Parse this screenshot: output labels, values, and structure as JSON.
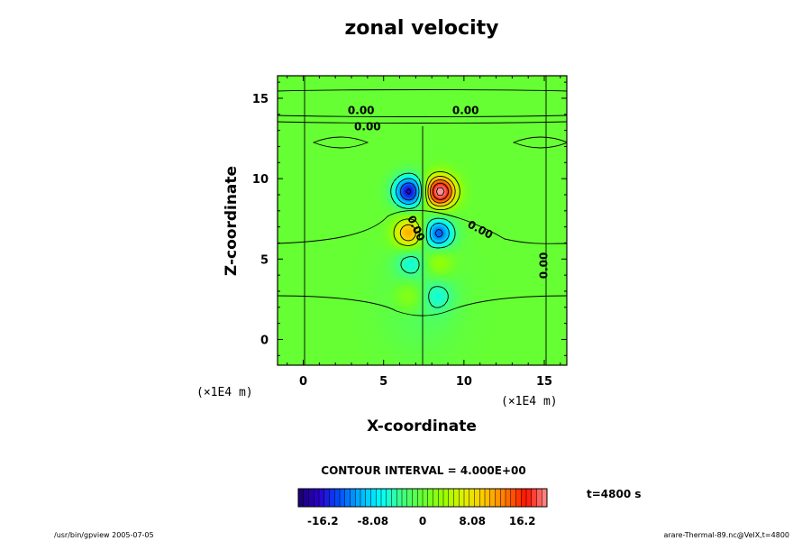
{
  "chart_data": {
    "type": "heatmap",
    "title": "zonal velocity",
    "xlabel": "X-coordinate",
    "ylabel": "Z-coordinate",
    "x_unit": "(×1E4 m)",
    "y_unit": "(×1E4 m)",
    "xlim": [
      -1.6,
      16.4
    ],
    "ylim": [
      -1.6,
      16.4
    ],
    "x_ticks": [
      0,
      5,
      10,
      15
    ],
    "y_ticks": [
      0,
      5,
      10,
      15
    ],
    "x_tick_labels": [
      "0",
      "5",
      "10",
      "15"
    ],
    "y_tick_labels": [
      "0",
      "5",
      "10",
      "15"
    ],
    "field_extrema": [
      {
        "x": 8.5,
        "z": 9.2,
        "value": 22,
        "sign": "positive"
      },
      {
        "x": 6.6,
        "z": 9.2,
        "value": -17,
        "sign": "negative"
      },
      {
        "x": 6.6,
        "z": 6.6,
        "value": 12,
        "sign": "positive"
      },
      {
        "x": 8.4,
        "z": 6.6,
        "value": -13,
        "sign": "negative"
      },
      {
        "x": 6.7,
        "z": 4.8,
        "value": -5,
        "sign": "negative"
      },
      {
        "x": 8.4,
        "z": 4.8,
        "value": 4.5,
        "sign": "positive"
      },
      {
        "x": 6.6,
        "z": 2.7,
        "value": 4,
        "sign": "positive"
      },
      {
        "x": 8.4,
        "z": 2.7,
        "value": -4,
        "sign": "negative"
      }
    ],
    "contour_labels": [
      {
        "text": "0.00",
        "x": 3.6,
        "z": 14.2,
        "angle": 0
      },
      {
        "text": "0.00",
        "x": 10.1,
        "z": 14.2,
        "angle": 0
      },
      {
        "text": "0.00",
        "x": 4.0,
        "z": 13.2,
        "angle": 0
      },
      {
        "text": "0.00",
        "x": 7.0,
        "z": 6.9,
        "angle": 65
      },
      {
        "text": "0.00",
        "x": 11.0,
        "z": 6.8,
        "angle": 28
      },
      {
        "text": "0.00",
        "x": 15.0,
        "z": 4.6,
        "angle": -90
      }
    ],
    "contour_interval_text": "CONTOUR INTERVAL = 4.000E+00",
    "colorbar": {
      "min": -20.2,
      "max": 20.2,
      "tick_values": [
        -16.2,
        -8.08,
        0,
        8.08,
        16.2
      ],
      "tick_labels": [
        "-16.2",
        "-8.08",
        "0",
        "8.08",
        "16.2"
      ],
      "colors": [
        "#1a006a",
        "#2a00cc",
        "#0050ff",
        "#00b4ff",
        "#00ffff",
        "#40ff80",
        "#66ff33",
        "#99ff00",
        "#e0f000",
        "#ffc800",
        "#ff7800",
        "#ff1000",
        "#ff9090"
      ]
    },
    "time_label": "t=4800 s",
    "footer_left": "/usr/bin/gpview 2005-07-05",
    "footer_right": "arare-Thermal-89.nc@VelX,t=4800"
  }
}
